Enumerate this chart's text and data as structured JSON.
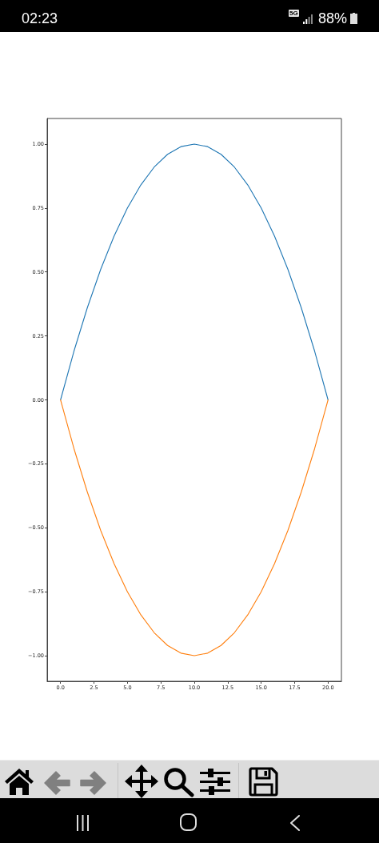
{
  "chart_data": {
    "type": "line",
    "x": [
      0,
      1,
      2,
      3,
      4,
      5,
      6,
      7,
      8,
      9,
      10,
      11,
      12,
      13,
      14,
      15,
      16,
      17,
      18,
      19,
      20
    ],
    "series": [
      {
        "color": "#1f77b4",
        "values": [
          0,
          0.19,
          0.36,
          0.51,
          0.64,
          0.75,
          0.84,
          0.91,
          0.96,
          0.99,
          1,
          0.99,
          0.96,
          0.91,
          0.84,
          0.75,
          0.64,
          0.51,
          0.36,
          0.19,
          0
        ]
      },
      {
        "color": "#ff7f0e",
        "values": [
          0,
          -0.19,
          -0.36,
          -0.51,
          -0.64,
          -0.75,
          -0.84,
          -0.91,
          -0.96,
          -0.99,
          -1,
          -0.99,
          -0.96,
          -0.91,
          -0.84,
          -0.75,
          -0.64,
          -0.51,
          -0.36,
          -0.19,
          0
        ]
      }
    ],
    "xlim": [
      -1,
      21
    ],
    "xticks": [
      {
        "value": 0,
        "label": "0.0"
      },
      {
        "value": 2.5,
        "label": "2.5"
      },
      {
        "value": 5,
        "label": "5.0"
      },
      {
        "value": 7.5,
        "label": "7.5"
      },
      {
        "value": 10,
        "label": "10.0"
      },
      {
        "value": 12.5,
        "label": "12.5"
      },
      {
        "value": 15,
        "label": "15.0"
      },
      {
        "value": 17.5,
        "label": "17.5"
      },
      {
        "value": 20,
        "label": "20.0"
      }
    ],
    "ylim": [
      -1.1,
      1.1
    ],
    "yticks": [
      {
        "value": -1,
        "label": "−1.00"
      },
      {
        "value": -0.75,
        "label": "−0.75"
      },
      {
        "value": -0.5,
        "label": "−0.50"
      },
      {
        "value": -0.25,
        "label": "−0.25"
      },
      {
        "value": 0,
        "label": "0.00"
      },
      {
        "value": 0.25,
        "label": "0.25"
      },
      {
        "value": 0.5,
        "label": "0.50"
      },
      {
        "value": 0.75,
        "label": "0.75"
      },
      {
        "value": 1,
        "label": "1.00"
      }
    ],
    "grid": false,
    "marker": "none",
    "line_style": "solid",
    "annotations": [
      "02:23",
      "5G",
      "88%"
    ]
  }
}
